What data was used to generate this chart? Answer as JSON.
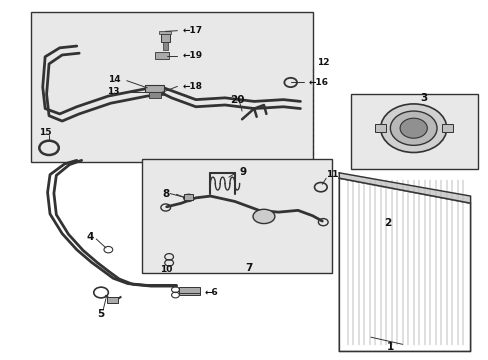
{
  "bg_color": "#ffffff",
  "diagram_bg": "#e8e8e8",
  "line_color": "#333333",
  "text_color": "#111111",
  "figsize": [
    4.89,
    3.6
  ],
  "dpi": 100
}
